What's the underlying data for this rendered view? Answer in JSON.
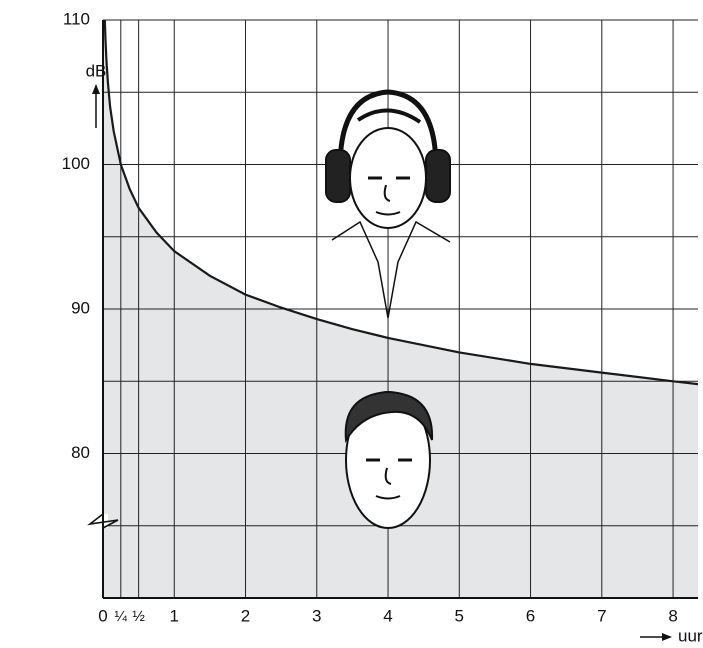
{
  "chart_data": {
    "type": "area",
    "y_label": "dB",
    "x_label": "uur",
    "xlim": [
      0,
      8.35
    ],
    "ylim": [
      70,
      110
    ],
    "xticks": [
      0,
      {
        "value": 0.25,
        "label": "¼"
      },
      {
        "value": 0.5,
        "label": "½"
      },
      1,
      2,
      3,
      4,
      5,
      6,
      7,
      8
    ],
    "yticks": [
      80,
      90,
      100,
      110
    ],
    "ygrid": [
      75,
      80,
      85,
      90,
      95,
      100,
      105,
      110
    ],
    "grid": true,
    "series": [
      {
        "color": "#1a1a1a",
        "fill": "#e5e6e8",
        "x": [
          0.025,
          0.035,
          0.05,
          0.07,
          0.1,
          0.15,
          0.25,
          0.375,
          0.5,
          0.75,
          1,
          1.5,
          2,
          2.5,
          3,
          3.5,
          4,
          5,
          6,
          7,
          8,
          8.35
        ],
        "values": [
          110,
          108.6,
          107,
          105.6,
          104,
          102.3,
          100,
          98.3,
          97,
          95.3,
          94,
          92.3,
          91,
          90.1,
          89.3,
          88.6,
          88,
          87,
          86.2,
          85.6,
          85,
          84.8
        ]
      }
    ]
  }
}
